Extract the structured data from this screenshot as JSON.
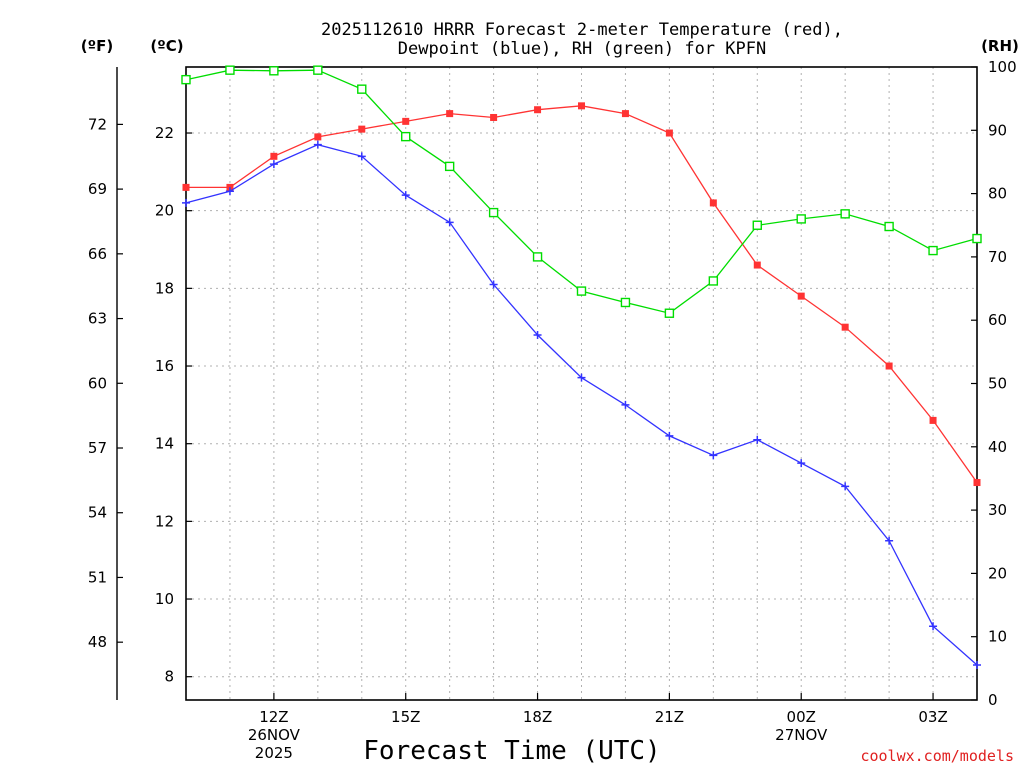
{
  "chart_data": {
    "type": "line",
    "title_lines": [
      "2025112610 HRRR Forecast 2-meter Temperature (red),",
      "Dewpoint (blue), RH (green) for KPFN"
    ],
    "xlabel": "Forecast Time (UTC)",
    "credit": "coolwx.com/models",
    "unit_labels": {
      "f": "(ºF)",
      "c": "(ºC)",
      "rh": "(RH)"
    },
    "x_hours": [
      10,
      11,
      12,
      13,
      14,
      15,
      16,
      17,
      18,
      19,
      20,
      21,
      22,
      23,
      24,
      25,
      26,
      27,
      28
    ],
    "xlim": [
      10,
      28
    ],
    "x_ticks": [
      {
        "hour": 12,
        "lines": [
          "12Z",
          "26NOV",
          "2025"
        ]
      },
      {
        "hour": 15,
        "lines": [
          "15Z"
        ]
      },
      {
        "hour": 18,
        "lines": [
          "18Z"
        ]
      },
      {
        "hour": 21,
        "lines": [
          "21Z"
        ]
      },
      {
        "hour": 24,
        "lines": [
          "00Z",
          "27NOV"
        ]
      },
      {
        "hour": 27,
        "lines": [
          "03Z"
        ]
      }
    ],
    "y_celsius": {
      "lim": [
        7.4,
        23.7
      ],
      "ticks": [
        8,
        10,
        12,
        14,
        16,
        18,
        20,
        22
      ]
    },
    "y_fahrenheit": {
      "ticks": [
        48,
        51,
        54,
        57,
        60,
        63,
        66,
        69,
        72
      ]
    },
    "y_rh": {
      "lim": [
        0,
        100
      ],
      "ticks": [
        0,
        10,
        20,
        30,
        40,
        50,
        60,
        70,
        80,
        90,
        100
      ]
    },
    "series": [
      {
        "name": "Temperature",
        "axis": "celsius",
        "color": "#ff3333",
        "marker": "filled-square",
        "values": [
          20.6,
          20.6,
          21.4,
          21.9,
          22.1,
          22.3,
          22.5,
          22.4,
          22.6,
          22.7,
          22.5,
          22.0,
          20.2,
          18.6,
          17.8,
          17.0,
          16.0,
          14.6,
          13.0
        ]
      },
      {
        "name": "Dewpoint",
        "axis": "celsius",
        "color": "#3333ff",
        "marker": "plus",
        "values": [
          20.2,
          20.5,
          21.2,
          21.7,
          21.4,
          20.4,
          19.7,
          18.1,
          16.8,
          15.7,
          15.0,
          14.2,
          13.7,
          14.1,
          13.5,
          12.9,
          11.5,
          9.3,
          8.3
        ]
      },
      {
        "name": "RH",
        "axis": "rh",
        "color": "#00dd00",
        "marker": "open-square",
        "values": [
          98,
          99.5,
          99.4,
          99.5,
          96.5,
          89,
          84.3,
          77,
          70,
          64.6,
          62.8,
          61.1,
          66.2,
          75,
          76,
          76.8,
          74.8,
          71,
          72.9
        ]
      }
    ]
  }
}
